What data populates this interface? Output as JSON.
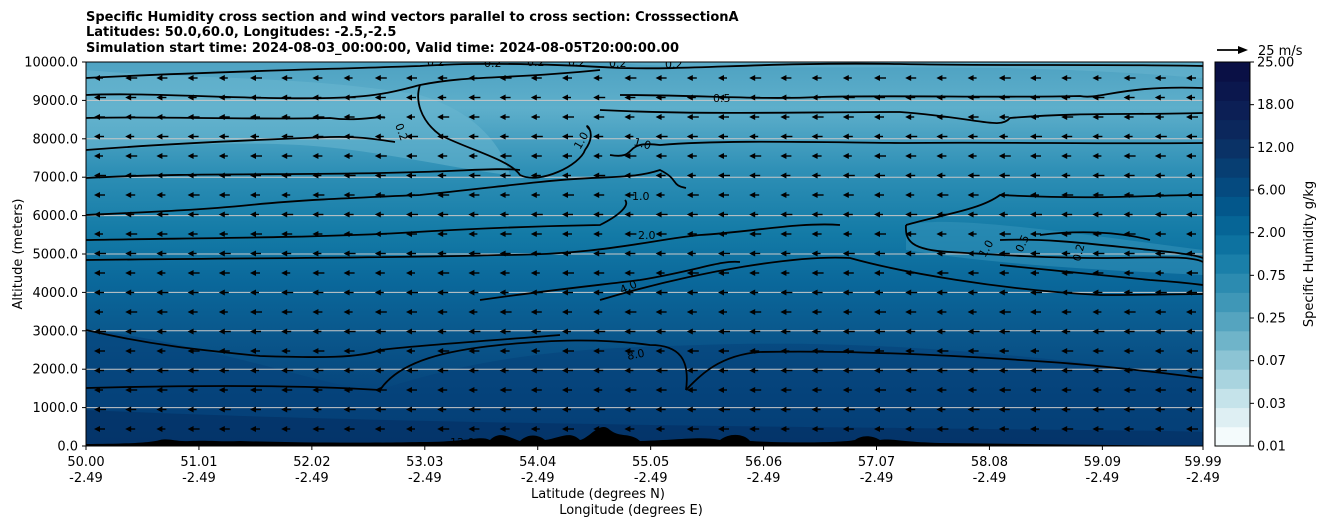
{
  "chart_data": {
    "type": "heatmap",
    "title_lines": [
      "Specific Humidity cross section and wind vectors parallel to cross section: CrosssectionA",
      "Latitudes: 50.0,60.0, Longitudes: -2.5,-2.5",
      "Simulation start time: 2024-08-03_00:00:00, Valid time: 2024-08-05T20:00:00.00"
    ],
    "ylabel": "Altitude (meters)",
    "xlabel_lat": "Latitude (degrees N)",
    "xlabel_lon": "Longitude (degrees E)",
    "ylim": [
      0,
      10000
    ],
    "xlim": [
      50.0,
      59.99
    ],
    "y_ticks": [
      "0.0",
      "1000.0",
      "2000.0",
      "3000.0",
      "4000.0",
      "5000.0",
      "6000.0",
      "7000.0",
      "8000.0",
      "9000.0",
      "10000.0"
    ],
    "x_ticks": [
      {
        "lat": "50.00",
        "lon": "-2.49"
      },
      {
        "lat": "51.01",
        "lon": "-2.49"
      },
      {
        "lat": "52.02",
        "lon": "-2.49"
      },
      {
        "lat": "53.03",
        "lon": "-2.49"
      },
      {
        "lat": "54.04",
        "lon": "-2.49"
      },
      {
        "lat": "55.05",
        "lon": "-2.49"
      },
      {
        "lat": "56.06",
        "lon": "-2.49"
      },
      {
        "lat": "57.07",
        "lon": "-2.49"
      },
      {
        "lat": "58.08",
        "lon": "-2.49"
      },
      {
        "lat": "59.09",
        "lon": "-2.49"
      },
      {
        "lat": "59.99",
        "lon": "-2.49"
      }
    ],
    "colorbar": {
      "label": "Specific Humidity g/kg",
      "tick_labels": [
        "0.01",
        "0.03",
        "0.07",
        "0.25",
        "0.75",
        "2.00",
        "6.00",
        "12.00",
        "18.00",
        "25.00"
      ],
      "colors": [
        "#f4fbfc",
        "#deeff3",
        "#c5e3ea",
        "#a9d4df",
        "#8cc4d4",
        "#6fb4c9",
        "#55a4bf",
        "#3f97b7",
        "#2c8bb0",
        "#1a7fa9",
        "#0d72a0",
        "#066596",
        "#03578b",
        "#054a7f",
        "#073e72",
        "#0a3266",
        "#0b275c",
        "#0c1f55",
        "#0b174d",
        "#0a1045"
      ]
    },
    "contour_labels": [
      "0.2",
      "0.2",
      "0.2",
      "0.2",
      "0.2",
      "0.2",
      "0.2",
      "0.5",
      "1.0",
      "1.0",
      "1.0",
      "2.0",
      "4.0",
      "8.0",
      "12.0",
      "1.0",
      "0.5",
      "0.2"
    ],
    "quiver_key": "25 m/s",
    "wind_arrow_direction": "left"
  }
}
